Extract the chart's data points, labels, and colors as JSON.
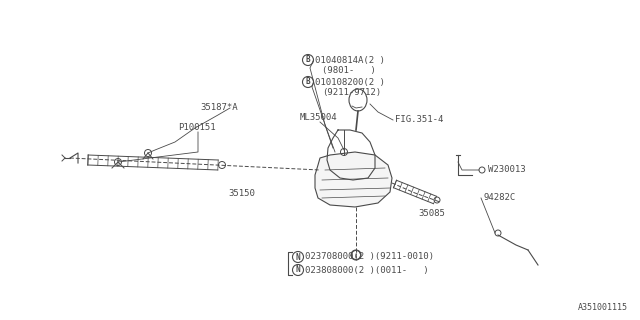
{
  "bg_color": "#ffffff",
  "line_color": "#4a4a4a",
  "text_color": "#4a4a4a",
  "fig_width": 6.4,
  "fig_height": 3.2,
  "dpi": 100,
  "watermark": "A351001115",
  "labels": {
    "bolt_top1": "01040814A(2 )",
    "bolt_top1_sub": "(9801-   )",
    "bolt_top2": "010108200(2 )",
    "bolt_top2_sub": "(9211-9712)",
    "part_35187": "35187*A",
    "part_P100151": "P100151",
    "part_ML35004": "ML35004",
    "part_FIG3514": "FIG.351-4",
    "part_35150": "35150",
    "part_35085": "35085",
    "part_W230013": "W230013",
    "part_94282C": "94282C",
    "nut1": "023708000(2 )(9211-0010)",
    "nut2": "023808000(2 )(0011-   )"
  },
  "font_size": 7.0,
  "small_font_size": 6.5
}
